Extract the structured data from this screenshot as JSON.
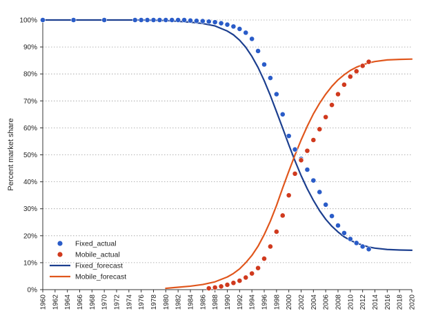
{
  "chart_data": {
    "type": "line",
    "title": "",
    "xlabel": "",
    "ylabel": "Percent market share",
    "xlim": [
      1960,
      2020
    ],
    "ylim": [
      0,
      100
    ],
    "x_ticks": [
      1960,
      1962,
      1964,
      1966,
      1968,
      1970,
      1972,
      1974,
      1976,
      1978,
      1980,
      1982,
      1984,
      1986,
      1988,
      1990,
      1992,
      1994,
      1996,
      1998,
      2000,
      2002,
      2004,
      2006,
      2008,
      2010,
      2012,
      2014,
      2016,
      2018,
      2020
    ],
    "y_ticks": [
      0,
      10,
      20,
      30,
      40,
      50,
      60,
      70,
      80,
      90,
      100
    ],
    "y_tick_suffix": "%",
    "grid": "horizontal dotted",
    "legend_position": "bottom-left",
    "series": [
      {
        "name": "Fixed_actual",
        "kind": "scatter",
        "color": "#2a5cc8",
        "x": [
          1960,
          1965,
          1970,
          1975,
          1976,
          1977,
          1978,
          1979,
          1980,
          1981,
          1982,
          1983,
          1984,
          1985,
          1986,
          1987,
          1988,
          1989,
          1990,
          1991,
          1992,
          1993,
          1994,
          1995,
          1996,
          1997,
          1998,
          1999,
          2000,
          2001,
          2002,
          2003,
          2004,
          2005,
          2006,
          2007,
          2008,
          2009,
          2010,
          2011,
          2012,
          2013
        ],
        "y": [
          100,
          100,
          100,
          100,
          100,
          100,
          100,
          100,
          100,
          100,
          100,
          100,
          99.8,
          99.7,
          99.6,
          99.4,
          99.2,
          98.8,
          98.3,
          97.6,
          96.7,
          95.3,
          93,
          88.5,
          83.5,
          78.5,
          72.5,
          65,
          57,
          52,
          48.5,
          44.5,
          40.5,
          36.2,
          31.5,
          27.3,
          23.8,
          21,
          18.8,
          17.3,
          16,
          15
        ]
      },
      {
        "name": "Mobile_actual",
        "kind": "scatter",
        "color": "#d03a1e",
        "x": [
          1987,
          1988,
          1989,
          1990,
          1991,
          1992,
          1993,
          1994,
          1995,
          1996,
          1997,
          1998,
          1999,
          2000,
          2001,
          2002,
          2003,
          2004,
          2005,
          2006,
          2007,
          2008,
          2009,
          2010,
          2011,
          2012,
          2013
        ],
        "y": [
          0.5,
          0.8,
          1.2,
          1.8,
          2.5,
          3.3,
          4.5,
          6,
          8,
          11.5,
          16,
          21.5,
          27.5,
          35,
          43,
          48,
          51.5,
          55.5,
          59.5,
          64,
          68.5,
          72.5,
          76,
          79,
          81,
          83,
          84.5
        ]
      },
      {
        "name": "Fixed_forecast",
        "kind": "line",
        "color": "#1c3f8f",
        "x": [
          1960,
          1970,
          1976,
          1980,
          1984,
          1986,
          1988,
          1990,
          1991,
          1992,
          1993,
          1994,
          1995,
          1996,
          1997,
          1998,
          1999,
          2000,
          2001,
          2002,
          2003,
          2004,
          2005,
          2006,
          2007,
          2008,
          2009,
          2010,
          2011,
          2012,
          2013,
          2014,
          2016,
          2018,
          2020
        ],
        "y": [
          100,
          100,
          100,
          99.8,
          99.2,
          98.7,
          97.8,
          95.9,
          94.5,
          92.5,
          89.9,
          86.5,
          82.4,
          77.5,
          72,
          66,
          59.9,
          53.7,
          47.8,
          42.3,
          37.4,
          33.1,
          29.3,
          26.1,
          23.5,
          21.4,
          19.6,
          18.3,
          17.3,
          16.5,
          15.8,
          15.4,
          14.9,
          14.7,
          14.6
        ]
      },
      {
        "name": "Mobile_forecast",
        "kind": "line",
        "color": "#e0561c",
        "x": [
          1980,
          1982,
          1984,
          1986,
          1988,
          1990,
          1991,
          1992,
          1993,
          1994,
          1995,
          1996,
          1997,
          1998,
          1999,
          2000,
          2001,
          2002,
          2003,
          2004,
          2005,
          2006,
          2007,
          2008,
          2009,
          2010,
          2011,
          2012,
          2013,
          2014,
          2016,
          2018,
          2020
        ],
        "y": [
          0.5,
          0.9,
          1.3,
          1.9,
          2.9,
          4.7,
          6,
          7.7,
          10,
          12.7,
          16.1,
          20.4,
          25.4,
          31.2,
          37.7,
          43.9,
          49.9,
          55.5,
          60.6,
          65.2,
          69.1,
          72.5,
          75.4,
          77.8,
          79.7,
          81.3,
          82.5,
          83.4,
          84.1,
          84.6,
          85.2,
          85.4,
          85.5
        ]
      }
    ]
  }
}
